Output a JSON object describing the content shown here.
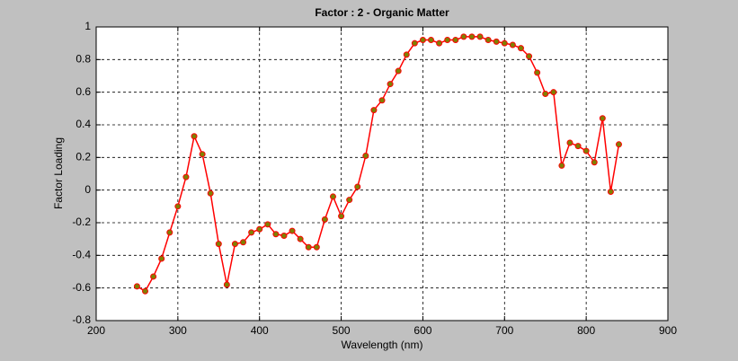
{
  "chart_data": {
    "type": "line",
    "title": "Factor : 2 - Organic Matter",
    "x_label": "Wavelength (nm)",
    "y_label": "Factor Loading",
    "x": [
      250,
      260,
      270,
      280,
      290,
      300,
      310,
      320,
      330,
      340,
      350,
      360,
      370,
      380,
      390,
      400,
      410,
      420,
      430,
      440,
      450,
      460,
      470,
      480,
      490,
      500,
      510,
      520,
      530,
      540,
      550,
      560,
      570,
      580,
      590,
      600,
      610,
      620,
      630,
      640,
      650,
      660,
      670,
      680,
      690,
      700,
      710,
      720,
      730,
      740,
      750,
      760,
      770,
      780,
      790,
      800,
      810,
      820,
      830,
      840
    ],
    "values": [
      -0.59,
      -0.62,
      -0.53,
      -0.42,
      -0.26,
      -0.1,
      0.08,
      0.33,
      0.22,
      -0.02,
      -0.33,
      -0.58,
      -0.33,
      -0.32,
      -0.26,
      -0.24,
      -0.21,
      -0.27,
      -0.28,
      -0.25,
      -0.3,
      -0.35,
      -0.35,
      -0.18,
      -0.04,
      -0.16,
      -0.06,
      0.02,
      0.21,
      0.49,
      0.55,
      0.65,
      0.73,
      0.83,
      0.9,
      0.92,
      0.92,
      0.9,
      0.92,
      0.92,
      0.94,
      0.94,
      0.94,
      0.92,
      0.91,
      0.9,
      0.89,
      0.87,
      0.82,
      0.72,
      0.59,
      0.6,
      0.15,
      0.29,
      0.27,
      0.24,
      0.17,
      0.44,
      -0.01,
      0.28
    ],
    "color": "#ff0000",
    "marker_color": "#808000",
    "xlim": [
      200,
      900
    ],
    "xticks": [
      200,
      300,
      400,
      500,
      600,
      700,
      800,
      900
    ],
    "ylim": [
      -0.8,
      1
    ],
    "yticks": [
      -0.8,
      -0.6,
      -0.4,
      -0.2,
      0,
      0.2,
      0.4,
      0.6,
      0.8,
      1
    ],
    "grid": true
  }
}
